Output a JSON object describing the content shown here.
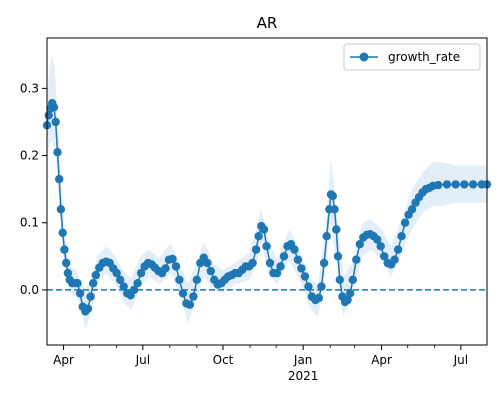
{
  "chart_data": {
    "type": "line",
    "title": "AR",
    "xlabel": "",
    "ylabel": "",
    "x_start": "2020-03-13",
    "x_end": "2021-07-31",
    "xlim": [
      "2020-03-13",
      "2021-07-31"
    ],
    "ylim": [
      -0.082,
      0.375
    ],
    "grid": false,
    "legend_position": "top-right",
    "x_ticks": [
      {
        "date": "2020-04-01",
        "label": "Apr",
        "sublabel": ""
      },
      {
        "date": "2020-07-01",
        "label": "Jul",
        "sublabel": ""
      },
      {
        "date": "2020-10-01",
        "label": "Oct",
        "sublabel": ""
      },
      {
        "date": "2021-01-01",
        "label": "Jan",
        "sublabel": "2021"
      },
      {
        "date": "2021-04-01",
        "label": "Apr",
        "sublabel": ""
      },
      {
        "date": "2021-07-01",
        "label": "Jul",
        "sublabel": ""
      }
    ],
    "y_ticks": [
      {
        "value": 0.0,
        "label": "0.0"
      },
      {
        "value": 0.1,
        "label": "0.1"
      },
      {
        "value": 0.2,
        "label": "0.2"
      },
      {
        "value": 0.3,
        "label": "0.3"
      }
    ],
    "reference_line": {
      "y": 0.0,
      "style": "dashed",
      "color": "#1f77b4"
    },
    "series": [
      {
        "name": "growth_rate",
        "color": "#1f77b4",
        "band_color": "#dbe8f5",
        "points": [
          [
            "2020-03-13",
            0.245
          ],
          [
            "2020-03-15",
            0.26
          ],
          [
            "2020-03-17",
            0.27
          ],
          [
            "2020-03-19",
            0.278
          ],
          [
            "2020-03-21",
            0.272
          ],
          [
            "2020-03-23",
            0.25
          ],
          [
            "2020-03-25",
            0.205
          ],
          [
            "2020-03-27",
            0.165
          ],
          [
            "2020-03-29",
            0.12
          ],
          [
            "2020-03-31",
            0.085
          ],
          [
            "2020-04-02",
            0.06
          ],
          [
            "2020-04-04",
            0.04
          ],
          [
            "2020-04-06",
            0.025
          ],
          [
            "2020-04-08",
            0.015
          ],
          [
            "2020-04-11",
            0.01
          ],
          [
            "2020-04-14",
            0.01
          ],
          [
            "2020-04-17",
            0.01
          ],
          [
            "2020-04-20",
            -0.005
          ],
          [
            "2020-04-23",
            -0.025
          ],
          [
            "2020-04-26",
            -0.032
          ],
          [
            "2020-04-29",
            -0.028
          ],
          [
            "2020-05-02",
            -0.01
          ],
          [
            "2020-05-05",
            0.01
          ],
          [
            "2020-05-08",
            0.022
          ],
          [
            "2020-05-12",
            0.033
          ],
          [
            "2020-05-16",
            0.04
          ],
          [
            "2020-05-20",
            0.042
          ],
          [
            "2020-05-24",
            0.04
          ],
          [
            "2020-05-28",
            0.032
          ],
          [
            "2020-06-01",
            0.025
          ],
          [
            "2020-06-05",
            0.015
          ],
          [
            "2020-06-09",
            0.005
          ],
          [
            "2020-06-13",
            -0.005
          ],
          [
            "2020-06-17",
            -0.008
          ],
          [
            "2020-06-21",
            0.0
          ],
          [
            "2020-06-25",
            0.01
          ],
          [
            "2020-06-29",
            0.025
          ],
          [
            "2020-07-03",
            0.035
          ],
          [
            "2020-07-07",
            0.04
          ],
          [
            "2020-07-11",
            0.038
          ],
          [
            "2020-07-15",
            0.033
          ],
          [
            "2020-07-19",
            0.028
          ],
          [
            "2020-07-23",
            0.025
          ],
          [
            "2020-07-27",
            0.032
          ],
          [
            "2020-07-31",
            0.045
          ],
          [
            "2020-08-04",
            0.046
          ],
          [
            "2020-08-08",
            0.035
          ],
          [
            "2020-08-12",
            0.015
          ],
          [
            "2020-08-16",
            -0.005
          ],
          [
            "2020-08-20",
            -0.02
          ],
          [
            "2020-08-24",
            -0.022
          ],
          [
            "2020-08-28",
            -0.01
          ],
          [
            "2020-09-01",
            0.015
          ],
          [
            "2020-09-05",
            0.04
          ],
          [
            "2020-09-09",
            0.048
          ],
          [
            "2020-09-13",
            0.04
          ],
          [
            "2020-09-17",
            0.028
          ],
          [
            "2020-09-21",
            0.015
          ],
          [
            "2020-09-25",
            0.008
          ],
          [
            "2020-09-29",
            0.01
          ],
          [
            "2020-10-03",
            0.015
          ],
          [
            "2020-10-07",
            0.02
          ],
          [
            "2020-10-11",
            0.022
          ],
          [
            "2020-10-15",
            0.025
          ],
          [
            "2020-10-19",
            0.025
          ],
          [
            "2020-10-23",
            0.03
          ],
          [
            "2020-10-27",
            0.035
          ],
          [
            "2020-10-31",
            0.035
          ],
          [
            "2020-11-04",
            0.04
          ],
          [
            "2020-11-08",
            0.06
          ],
          [
            "2020-11-11",
            0.08
          ],
          [
            "2020-11-14",
            0.095
          ],
          [
            "2020-11-17",
            0.09
          ],
          [
            "2020-11-20",
            0.065
          ],
          [
            "2020-11-24",
            0.04
          ],
          [
            "2020-11-28",
            0.025
          ],
          [
            "2020-12-02",
            0.025
          ],
          [
            "2020-12-06",
            0.035
          ],
          [
            "2020-12-10",
            0.05
          ],
          [
            "2020-12-14",
            0.065
          ],
          [
            "2020-12-18",
            0.068
          ],
          [
            "2020-12-22",
            0.06
          ],
          [
            "2020-12-26",
            0.045
          ],
          [
            "2020-12-30",
            0.032
          ],
          [
            "2021-01-03",
            0.02
          ],
          [
            "2021-01-07",
            0.005
          ],
          [
            "2021-01-11",
            -0.01
          ],
          [
            "2021-01-15",
            -0.015
          ],
          [
            "2021-01-19",
            -0.012
          ],
          [
            "2021-01-22",
            0.005
          ],
          [
            "2021-01-25",
            0.04
          ],
          [
            "2021-01-28",
            0.08
          ],
          [
            "2021-01-31",
            0.12
          ],
          [
            "2021-02-02",
            0.142
          ],
          [
            "2021-02-04",
            0.14
          ],
          [
            "2021-02-06",
            0.12
          ],
          [
            "2021-02-08",
            0.09
          ],
          [
            "2021-02-10",
            0.05
          ],
          [
            "2021-02-12",
            0.015
          ],
          [
            "2021-02-15",
            -0.01
          ],
          [
            "2021-02-18",
            -0.018
          ],
          [
            "2021-02-21",
            -0.015
          ],
          [
            "2021-02-24",
            -0.005
          ],
          [
            "2021-02-27",
            0.015
          ],
          [
            "2021-03-03",
            0.045
          ],
          [
            "2021-03-07",
            0.068
          ],
          [
            "2021-03-11",
            0.078
          ],
          [
            "2021-03-15",
            0.082
          ],
          [
            "2021-03-19",
            0.083
          ],
          [
            "2021-03-23",
            0.08
          ],
          [
            "2021-03-27",
            0.075
          ],
          [
            "2021-03-31",
            0.065
          ],
          [
            "2021-04-04",
            0.05
          ],
          [
            "2021-04-08",
            0.04
          ],
          [
            "2021-04-12",
            0.038
          ],
          [
            "2021-04-16",
            0.045
          ],
          [
            "2021-04-20",
            0.06
          ],
          [
            "2021-04-24",
            0.08
          ],
          [
            "2021-04-28",
            0.1
          ],
          [
            "2021-05-02",
            0.112
          ],
          [
            "2021-05-06",
            0.12
          ],
          [
            "2021-05-10",
            0.13
          ],
          [
            "2021-05-14",
            0.138
          ],
          [
            "2021-05-18",
            0.145
          ],
          [
            "2021-05-22",
            0.15
          ],
          [
            "2021-05-26",
            0.152
          ],
          [
            "2021-05-30",
            0.155
          ],
          [
            "2021-06-05",
            0.156
          ],
          [
            "2021-06-15",
            0.157
          ],
          [
            "2021-06-25",
            0.157
          ],
          [
            "2021-07-05",
            0.157
          ],
          [
            "2021-07-15",
            0.157
          ],
          [
            "2021-07-25",
            0.157
          ],
          [
            "2021-07-31",
            0.157
          ]
        ],
        "band": [
          [
            "2020-03-13",
            0.2,
            0.29
          ],
          [
            "2020-03-16",
            0.215,
            0.33
          ],
          [
            "2020-03-19",
            0.225,
            0.35
          ],
          [
            "2020-03-22",
            0.21,
            0.33
          ],
          [
            "2020-03-25",
            0.17,
            0.26
          ],
          [
            "2020-03-28",
            0.11,
            0.2
          ],
          [
            "2020-03-31",
            0.06,
            0.13
          ],
          [
            "2020-04-04",
            0.02,
            0.07
          ],
          [
            "2020-04-09",
            -0.005,
            0.035
          ],
          [
            "2020-04-15",
            -0.01,
            0.03
          ],
          [
            "2020-04-20",
            -0.02,
            0.015
          ],
          [
            "2020-04-26",
            -0.06,
            0.0
          ],
          [
            "2020-05-02",
            -0.035,
            0.015
          ],
          [
            "2020-05-10",
            0.01,
            0.05
          ],
          [
            "2020-05-20",
            0.025,
            0.065
          ],
          [
            "2020-05-30",
            0.01,
            0.05
          ],
          [
            "2020-06-10",
            -0.02,
            0.025
          ],
          [
            "2020-06-18",
            -0.03,
            0.018
          ],
          [
            "2020-06-28",
            0.005,
            0.05
          ],
          [
            "2020-07-08",
            0.02,
            0.06
          ],
          [
            "2020-07-20",
            0.008,
            0.048
          ],
          [
            "2020-08-02",
            0.025,
            0.07
          ],
          [
            "2020-08-12",
            -0.005,
            0.04
          ],
          [
            "2020-08-22",
            -0.05,
            0.01
          ],
          [
            "2020-09-01",
            -0.01,
            0.04
          ],
          [
            "2020-09-09",
            0.02,
            0.072
          ],
          [
            "2020-09-20",
            0.0,
            0.04
          ],
          [
            "2020-10-01",
            -0.005,
            0.03
          ],
          [
            "2020-10-15",
            0.008,
            0.04
          ],
          [
            "2020-10-31",
            0.015,
            0.055
          ],
          [
            "2020-11-08",
            0.035,
            0.09
          ],
          [
            "2020-11-14",
            0.07,
            0.12
          ],
          [
            "2020-11-22",
            0.025,
            0.075
          ],
          [
            "2020-12-02",
            0.008,
            0.045
          ],
          [
            "2020-12-16",
            0.045,
            0.09
          ],
          [
            "2020-12-28",
            0.015,
            0.06
          ],
          [
            "2021-01-10",
            -0.03,
            0.015
          ],
          [
            "2021-01-18",
            -0.04,
            0.01
          ],
          [
            "2021-01-26",
            0.02,
            0.08
          ],
          [
            "2021-02-02",
            0.1,
            0.2
          ],
          [
            "2021-02-08",
            0.04,
            0.12
          ],
          [
            "2021-02-16",
            -0.04,
            0.02
          ],
          [
            "2021-02-26",
            -0.01,
            0.04
          ],
          [
            "2021-03-10",
            0.05,
            0.1
          ],
          [
            "2021-03-20",
            0.06,
            0.105
          ],
          [
            "2021-04-01",
            0.045,
            0.09
          ],
          [
            "2021-04-12",
            0.02,
            0.065
          ],
          [
            "2021-04-24",
            0.055,
            0.105
          ],
          [
            "2021-05-06",
            0.09,
            0.15
          ],
          [
            "2021-05-18",
            0.115,
            0.175
          ],
          [
            "2021-05-30",
            0.125,
            0.19
          ],
          [
            "2021-06-10",
            0.125,
            0.19
          ],
          [
            "2021-06-25",
            0.13,
            0.185
          ],
          [
            "2021-07-31",
            0.13,
            0.185
          ]
        ]
      }
    ]
  }
}
